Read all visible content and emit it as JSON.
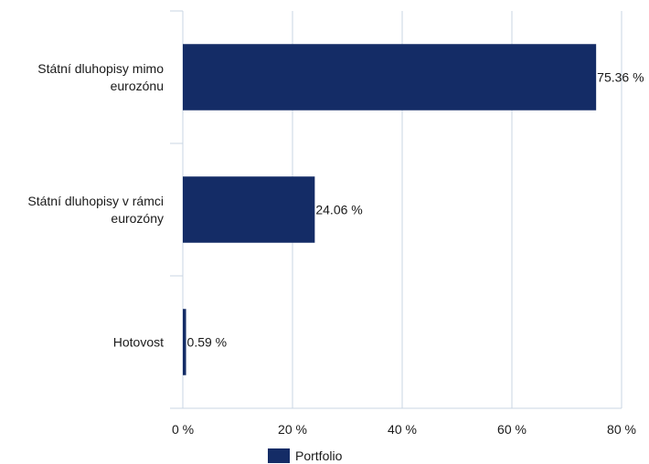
{
  "chart_data": {
    "type": "bar",
    "orientation": "horizontal",
    "categories": [
      [
        "Státní dluhopisy mimo",
        "eurozónu"
      ],
      [
        "Státní dluhopisy v rámci",
        "eurozóny"
      ],
      [
        "Hotovost"
      ]
    ],
    "series": [
      {
        "name": "Portfolio",
        "values": [
          75.36,
          24.06,
          0.59
        ],
        "value_labels": [
          "75.36 %",
          "24.06 %",
          "0.59 %"
        ],
        "color": "#142c66"
      }
    ],
    "xlim": [
      0,
      80
    ],
    "xticks": [
      {
        "value": 0,
        "label": "0 %"
      },
      {
        "value": 20,
        "label": "20 %"
      },
      {
        "value": 40,
        "label": "40 %"
      },
      {
        "value": 60,
        "label": "60 %"
      },
      {
        "value": 80,
        "label": "80 %"
      }
    ],
    "grid": true,
    "legend_position": "bottom",
    "grid_color": "#c9d6e3"
  }
}
